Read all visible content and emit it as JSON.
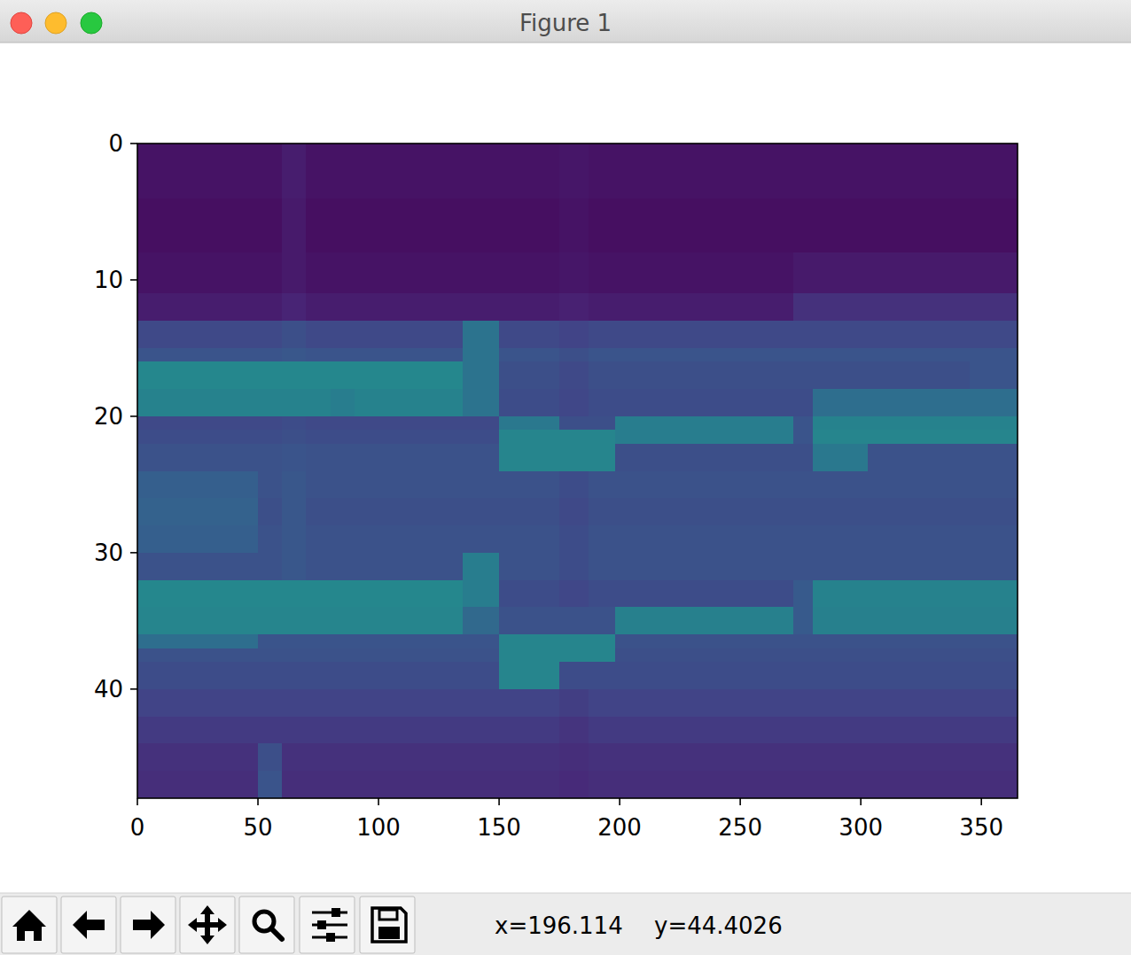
{
  "window": {
    "title": "Figure 1",
    "status_x": "x=196.114",
    "status_y": "y=44.4026"
  },
  "chart_data": {
    "type": "heatmap",
    "xlim": [
      0,
      365
    ],
    "ylim": [
      48,
      0
    ],
    "xticks": [
      0,
      50,
      100,
      150,
      200,
      250,
      300,
      350
    ],
    "yticks": [
      0,
      10,
      20,
      30,
      40
    ],
    "color_range": [
      0,
      1
    ],
    "x_edges": [
      0,
      10,
      20,
      30,
      40,
      50,
      60,
      70,
      80,
      90,
      100,
      110,
      120,
      135,
      142,
      150,
      160,
      175,
      187,
      198,
      210,
      225,
      240,
      255,
      272,
      280,
      290,
      303,
      315,
      330,
      345,
      365
    ],
    "y_edges": [
      0,
      4,
      8,
      11,
      13,
      15,
      16,
      18,
      20,
      21,
      22,
      24,
      26,
      28,
      30,
      32,
      34,
      36,
      37,
      38,
      40,
      42,
      44,
      46,
      48
    ],
    "cells": [
      [
        0.05,
        0.05,
        0.05,
        0.05,
        0.05,
        0.05,
        0.08,
        0.05,
        0.05,
        0.05,
        0.05,
        0.05,
        0.05,
        0.05,
        0.05,
        0.05,
        0.05,
        0.06,
        0.05,
        0.05,
        0.05,
        0.05,
        0.05,
        0.05,
        0.05,
        0.05,
        0.05,
        0.05,
        0.05,
        0.05,
        0.05
      ],
      [
        0.04,
        0.04,
        0.04,
        0.04,
        0.04,
        0.04,
        0.07,
        0.04,
        0.04,
        0.04,
        0.04,
        0.04,
        0.04,
        0.04,
        0.04,
        0.04,
        0.04,
        0.05,
        0.04,
        0.04,
        0.04,
        0.04,
        0.04,
        0.04,
        0.04,
        0.04,
        0.04,
        0.04,
        0.04,
        0.04,
        0.04
      ],
      [
        0.05,
        0.05,
        0.05,
        0.05,
        0.05,
        0.05,
        0.07,
        0.05,
        0.05,
        0.05,
        0.05,
        0.05,
        0.05,
        0.05,
        0.05,
        0.05,
        0.05,
        0.06,
        0.05,
        0.05,
        0.05,
        0.05,
        0.05,
        0.05,
        0.07,
        0.07,
        0.07,
        0.07,
        0.07,
        0.07,
        0.07
      ],
      [
        0.08,
        0.08,
        0.08,
        0.08,
        0.08,
        0.08,
        0.1,
        0.08,
        0.08,
        0.08,
        0.08,
        0.08,
        0.08,
        0.08,
        0.08,
        0.08,
        0.08,
        0.09,
        0.08,
        0.08,
        0.08,
        0.08,
        0.08,
        0.08,
        0.14,
        0.14,
        0.14,
        0.14,
        0.14,
        0.14,
        0.14
      ],
      [
        0.22,
        0.22,
        0.22,
        0.22,
        0.22,
        0.22,
        0.24,
        0.22,
        0.22,
        0.22,
        0.22,
        0.22,
        0.22,
        0.38,
        0.38,
        0.22,
        0.22,
        0.2,
        0.22,
        0.22,
        0.22,
        0.22,
        0.22,
        0.22,
        0.22,
        0.22,
        0.22,
        0.22,
        0.22,
        0.22,
        0.22
      ],
      [
        0.26,
        0.26,
        0.26,
        0.26,
        0.26,
        0.26,
        0.27,
        0.26,
        0.26,
        0.26,
        0.26,
        0.26,
        0.26,
        0.38,
        0.38,
        0.26,
        0.26,
        0.24,
        0.26,
        0.26,
        0.26,
        0.26,
        0.26,
        0.26,
        0.26,
        0.26,
        0.26,
        0.26,
        0.26,
        0.26,
        0.26
      ],
      [
        0.46,
        0.46,
        0.46,
        0.46,
        0.46,
        0.46,
        0.46,
        0.46,
        0.46,
        0.46,
        0.46,
        0.46,
        0.46,
        0.38,
        0.38,
        0.24,
        0.24,
        0.22,
        0.24,
        0.24,
        0.24,
        0.24,
        0.24,
        0.24,
        0.24,
        0.24,
        0.24,
        0.24,
        0.24,
        0.24,
        0.26
      ],
      [
        0.44,
        0.44,
        0.44,
        0.44,
        0.44,
        0.44,
        0.44,
        0.44,
        0.42,
        0.44,
        0.44,
        0.44,
        0.44,
        0.38,
        0.38,
        0.23,
        0.23,
        0.21,
        0.23,
        0.23,
        0.23,
        0.23,
        0.23,
        0.23,
        0.23,
        0.36,
        0.36,
        0.36,
        0.36,
        0.36,
        0.36
      ],
      [
        0.22,
        0.22,
        0.22,
        0.22,
        0.22,
        0.22,
        0.23,
        0.22,
        0.22,
        0.22,
        0.22,
        0.22,
        0.22,
        0.22,
        0.22,
        0.4,
        0.4,
        0.24,
        0.24,
        0.42,
        0.42,
        0.42,
        0.42,
        0.42,
        0.26,
        0.44,
        0.44,
        0.44,
        0.44,
        0.44,
        0.44
      ],
      [
        0.23,
        0.23,
        0.23,
        0.23,
        0.23,
        0.23,
        0.24,
        0.23,
        0.23,
        0.23,
        0.23,
        0.23,
        0.23,
        0.23,
        0.23,
        0.45,
        0.45,
        0.45,
        0.45,
        0.42,
        0.42,
        0.42,
        0.42,
        0.42,
        0.26,
        0.45,
        0.45,
        0.45,
        0.45,
        0.45,
        0.45
      ],
      [
        0.25,
        0.25,
        0.25,
        0.25,
        0.25,
        0.25,
        0.26,
        0.25,
        0.25,
        0.25,
        0.25,
        0.25,
        0.25,
        0.25,
        0.25,
        0.45,
        0.45,
        0.45,
        0.45,
        0.24,
        0.24,
        0.24,
        0.24,
        0.24,
        0.24,
        0.4,
        0.4,
        0.25,
        0.25,
        0.25,
        0.25
      ],
      [
        0.3,
        0.3,
        0.3,
        0.3,
        0.3,
        0.25,
        0.27,
        0.25,
        0.25,
        0.25,
        0.25,
        0.25,
        0.25,
        0.25,
        0.25,
        0.25,
        0.25,
        0.23,
        0.25,
        0.25,
        0.25,
        0.25,
        0.25,
        0.25,
        0.25,
        0.25,
        0.25,
        0.25,
        0.25,
        0.25,
        0.25
      ],
      [
        0.31,
        0.31,
        0.31,
        0.31,
        0.31,
        0.24,
        0.27,
        0.24,
        0.24,
        0.24,
        0.24,
        0.24,
        0.24,
        0.24,
        0.24,
        0.24,
        0.24,
        0.22,
        0.24,
        0.24,
        0.24,
        0.24,
        0.24,
        0.24,
        0.24,
        0.24,
        0.24,
        0.24,
        0.24,
        0.24,
        0.24
      ],
      [
        0.3,
        0.3,
        0.3,
        0.3,
        0.3,
        0.25,
        0.27,
        0.25,
        0.25,
        0.25,
        0.25,
        0.25,
        0.25,
        0.25,
        0.25,
        0.25,
        0.25,
        0.23,
        0.25,
        0.25,
        0.25,
        0.25,
        0.25,
        0.25,
        0.25,
        0.25,
        0.25,
        0.25,
        0.25,
        0.25,
        0.25
      ],
      [
        0.25,
        0.25,
        0.25,
        0.25,
        0.25,
        0.25,
        0.27,
        0.25,
        0.25,
        0.25,
        0.25,
        0.25,
        0.25,
        0.42,
        0.42,
        0.25,
        0.25,
        0.23,
        0.25,
        0.25,
        0.25,
        0.25,
        0.25,
        0.25,
        0.25,
        0.25,
        0.25,
        0.25,
        0.25,
        0.25,
        0.25
      ],
      [
        0.46,
        0.46,
        0.46,
        0.46,
        0.46,
        0.46,
        0.46,
        0.46,
        0.46,
        0.46,
        0.46,
        0.46,
        0.46,
        0.42,
        0.42,
        0.23,
        0.23,
        0.21,
        0.23,
        0.23,
        0.23,
        0.23,
        0.23,
        0.23,
        0.28,
        0.44,
        0.44,
        0.44,
        0.44,
        0.44,
        0.44
      ],
      [
        0.45,
        0.45,
        0.45,
        0.45,
        0.45,
        0.45,
        0.45,
        0.45,
        0.45,
        0.45,
        0.45,
        0.45,
        0.45,
        0.34,
        0.34,
        0.25,
        0.25,
        0.25,
        0.25,
        0.43,
        0.43,
        0.43,
        0.43,
        0.43,
        0.28,
        0.43,
        0.43,
        0.43,
        0.43,
        0.43,
        0.43
      ],
      [
        0.36,
        0.36,
        0.36,
        0.36,
        0.36,
        0.26,
        0.26,
        0.26,
        0.26,
        0.26,
        0.26,
        0.26,
        0.26,
        0.26,
        0.26,
        0.45,
        0.45,
        0.45,
        0.45,
        0.25,
        0.25,
        0.25,
        0.25,
        0.25,
        0.25,
        0.25,
        0.25,
        0.25,
        0.25,
        0.25,
        0.25
      ],
      [
        0.25,
        0.25,
        0.25,
        0.25,
        0.25,
        0.25,
        0.25,
        0.25,
        0.25,
        0.25,
        0.25,
        0.25,
        0.25,
        0.25,
        0.25,
        0.45,
        0.45,
        0.45,
        0.45,
        0.24,
        0.24,
        0.24,
        0.24,
        0.24,
        0.24,
        0.24,
        0.24,
        0.24,
        0.24,
        0.24,
        0.24
      ],
      [
        0.23,
        0.23,
        0.23,
        0.23,
        0.23,
        0.23,
        0.23,
        0.23,
        0.23,
        0.23,
        0.23,
        0.23,
        0.23,
        0.23,
        0.23,
        0.45,
        0.45,
        0.23,
        0.23,
        0.23,
        0.23,
        0.23,
        0.23,
        0.23,
        0.23,
        0.23,
        0.23,
        0.23,
        0.23,
        0.23,
        0.23
      ],
      [
        0.2,
        0.2,
        0.2,
        0.2,
        0.2,
        0.2,
        0.2,
        0.2,
        0.2,
        0.2,
        0.2,
        0.2,
        0.2,
        0.2,
        0.2,
        0.2,
        0.2,
        0.18,
        0.2,
        0.2,
        0.2,
        0.2,
        0.2,
        0.2,
        0.2,
        0.2,
        0.2,
        0.2,
        0.2,
        0.2,
        0.2
      ],
      [
        0.17,
        0.17,
        0.17,
        0.17,
        0.17,
        0.17,
        0.17,
        0.17,
        0.17,
        0.17,
        0.17,
        0.17,
        0.17,
        0.17,
        0.17,
        0.17,
        0.17,
        0.15,
        0.17,
        0.17,
        0.17,
        0.17,
        0.17,
        0.17,
        0.17,
        0.17,
        0.17,
        0.17,
        0.17,
        0.17,
        0.17
      ],
      [
        0.14,
        0.14,
        0.14,
        0.14,
        0.14,
        0.24,
        0.14,
        0.14,
        0.14,
        0.14,
        0.14,
        0.14,
        0.14,
        0.14,
        0.14,
        0.14,
        0.14,
        0.13,
        0.14,
        0.14,
        0.14,
        0.14,
        0.14,
        0.14,
        0.14,
        0.14,
        0.14,
        0.14,
        0.14,
        0.14,
        0.14
      ],
      [
        0.13,
        0.13,
        0.13,
        0.13,
        0.13,
        0.26,
        0.13,
        0.13,
        0.13,
        0.13,
        0.13,
        0.13,
        0.13,
        0.13,
        0.13,
        0.13,
        0.13,
        0.12,
        0.13,
        0.13,
        0.13,
        0.13,
        0.13,
        0.13,
        0.13,
        0.13,
        0.13,
        0.13,
        0.13,
        0.13,
        0.13
      ]
    ]
  }
}
